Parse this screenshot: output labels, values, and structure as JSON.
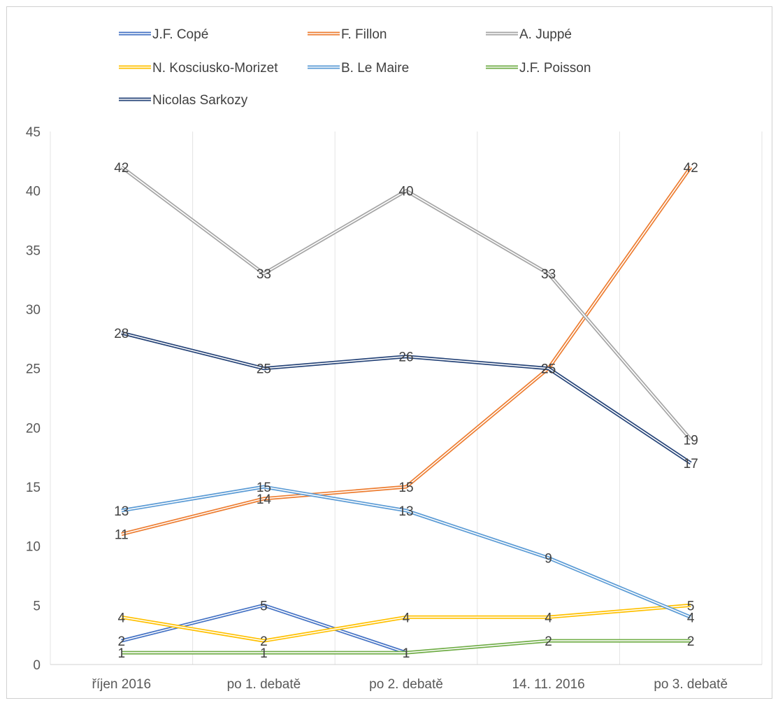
{
  "chart_data": {
    "type": "line",
    "categories": [
      "říjen 2016",
      "po 1. debatě",
      "po 2. debatě",
      "14. 11. 2016",
      "po 3. debatě"
    ],
    "ylim": [
      0,
      45
    ],
    "yticks": [
      0,
      5,
      10,
      15,
      20,
      25,
      30,
      35,
      40,
      45
    ],
    "grid": "vertical",
    "legend_position": "top",
    "data_labels": true,
    "series": [
      {
        "name": "J.F. Copé",
        "color": "#4472c4",
        "values": [
          2,
          5,
          1,
          null,
          null
        ]
      },
      {
        "name": "F. Fillon",
        "color": "#ed7d31",
        "values": [
          11,
          14,
          15,
          25,
          42
        ]
      },
      {
        "name": "A. Juppé",
        "color": "#a5a5a5",
        "values": [
          42,
          33,
          40,
          33,
          19
        ]
      },
      {
        "name": "N. Kosciusko-Morizet",
        "color": "#ffc000",
        "values": [
          4,
          2,
          4,
          4,
          5
        ]
      },
      {
        "name": "B. Le Maire",
        "color": "#5b9bd5",
        "values": [
          13,
          15,
          13,
          9,
          4
        ]
      },
      {
        "name": "J.F. Poisson",
        "color": "#70ad47",
        "values": [
          1,
          1,
          1,
          2,
          2
        ]
      },
      {
        "name": "Nicolas Sarkozy",
        "color": "#264478",
        "values": [
          28,
          25,
          26,
          25,
          17
        ]
      }
    ]
  }
}
